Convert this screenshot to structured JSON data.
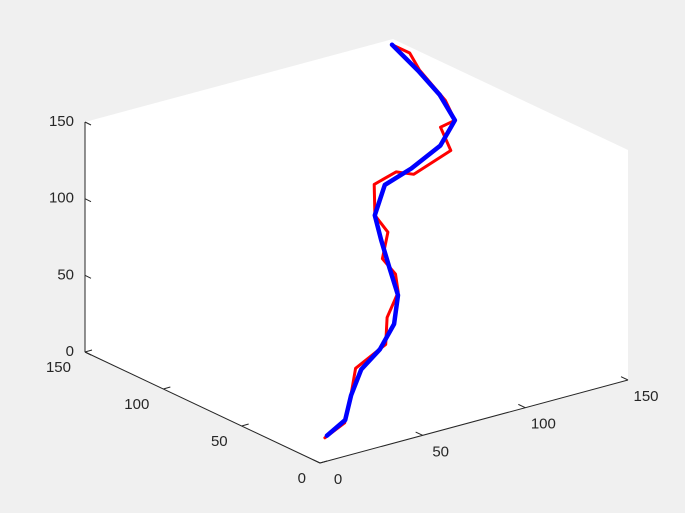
{
  "chart_data": {
    "type": "line3d",
    "xlim": [
      0,
      150
    ],
    "ylim": [
      0,
      150
    ],
    "zlim": [
      0,
      150
    ],
    "xticks": [
      0,
      50,
      100,
      150
    ],
    "yticks": [
      0,
      50,
      100,
      150
    ],
    "zticks": [
      0,
      50,
      100,
      150
    ],
    "series": [
      {
        "color": "#ff0000",
        "x": [
          10,
          25,
          33,
          41,
          61,
          67,
          77,
          81,
          80,
          88,
          87,
          92,
          108,
          122,
          140,
          135,
          142,
          145,
          146,
          149,
          148
        ],
        "y": [
          10,
          17,
          24,
          31,
          38,
          45,
          51,
          58,
          65,
          72,
          79,
          86,
          93,
          100,
          100,
          100,
          100,
          110,
          128,
          138,
          148
        ],
        "z": [
          8,
          9,
          18,
          32,
          37,
          49,
          59,
          66,
          73,
          84,
          92,
          107,
          106,
          96,
          105,
          122,
          124,
          131,
          142,
          147,
          148
        ]
      },
      {
        "color": "#0000ff",
        "x": [
          11,
          26,
          35,
          46,
          62,
          75,
          83,
          85,
          87,
          90,
          101,
          120,
          141,
          142,
          146,
          147,
          148
        ],
        "y": [
          10,
          18,
          26,
          34,
          43,
          51,
          59,
          67,
          75,
          83,
          91,
          99,
          108,
          100,
          115,
          130,
          148
        ],
        "z": [
          9,
          10,
          19,
          28,
          31,
          39,
          51,
          64,
          78,
          89,
          101,
          101,
          104,
          124,
          132,
          140,
          148
        ]
      }
    ]
  }
}
